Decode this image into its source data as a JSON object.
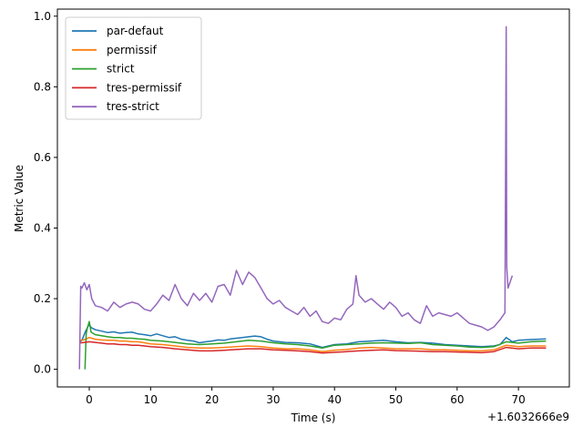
{
  "chart_data": {
    "type": "line",
    "title": "",
    "xlabel": "Time (s)",
    "ylabel": "Metric Value",
    "x_offset_label": "+1.6032666e9",
    "xlim": [
      -5.2,
      78.3
    ],
    "ylim": [
      -0.05,
      1.02
    ],
    "x_ticks": [
      0,
      10,
      20,
      30,
      40,
      50,
      60,
      70
    ],
    "y_ticks": [
      0.0,
      0.2,
      0.4,
      0.6,
      0.8,
      1.0
    ],
    "y_tick_labels": [
      "0.0",
      "0.2",
      "0.4",
      "0.6",
      "0.8",
      "1.0"
    ],
    "grid": false,
    "legend": "upper-left",
    "series": [
      {
        "name": "par-defaut",
        "color": "#1f77b4",
        "x": [
          -1.5,
          -1.2,
          -0.6,
          0.0,
          0.3,
          1,
          2,
          3,
          4,
          5,
          6,
          7,
          8,
          9,
          10,
          11,
          12,
          13,
          14,
          15,
          16,
          17,
          18,
          19,
          20,
          21,
          22,
          23,
          24,
          25,
          26,
          27,
          28,
          29,
          30,
          32,
          34,
          36,
          38,
          40,
          42,
          44,
          46,
          48,
          50,
          52,
          54,
          56,
          58,
          60,
          62,
          64,
          66,
          67,
          68,
          69,
          70,
          72,
          74.5
        ],
        "values": [
          0.078,
          0.082,
          0.108,
          0.128,
          0.118,
          0.112,
          0.108,
          0.104,
          0.106,
          0.102,
          0.104,
          0.105,
          0.1,
          0.098,
          0.095,
          0.1,
          0.095,
          0.09,
          0.092,
          0.085,
          0.082,
          0.08,
          0.075,
          0.078,
          0.08,
          0.083,
          0.082,
          0.086,
          0.088,
          0.09,
          0.092,
          0.094,
          0.092,
          0.085,
          0.08,
          0.076,
          0.075,
          0.072,
          0.062,
          0.07,
          0.072,
          0.078,
          0.08,
          0.082,
          0.078,
          0.075,
          0.076,
          0.074,
          0.07,
          0.068,
          0.066,
          0.064,
          0.066,
          0.07,
          0.09,
          0.078,
          0.082,
          0.084,
          0.086
        ]
      },
      {
        "name": "permissif",
        "color": "#ff7f0e",
        "x": [
          -1.5,
          -1.2,
          -0.6,
          0.0,
          1,
          2,
          3,
          4,
          5,
          6,
          7,
          8,
          9,
          10,
          12,
          14,
          16,
          18,
          20,
          22,
          24,
          26,
          28,
          30,
          32,
          34,
          36,
          38,
          40,
          42,
          44,
          46,
          48,
          50,
          52,
          54,
          56,
          58,
          60,
          62,
          64,
          66,
          68,
          70,
          72,
          74.5
        ],
        "values": [
          0.082,
          0.082,
          0.085,
          0.09,
          0.085,
          0.083,
          0.082,
          0.082,
          0.08,
          0.08,
          0.078,
          0.078,
          0.075,
          0.072,
          0.07,
          0.066,
          0.062,
          0.06,
          0.06,
          0.062,
          0.064,
          0.066,
          0.064,
          0.06,
          0.058,
          0.058,
          0.055,
          0.05,
          0.054,
          0.056,
          0.06,
          0.062,
          0.06,
          0.058,
          0.058,
          0.058,
          0.055,
          0.055,
          0.054,
          0.052,
          0.052,
          0.055,
          0.068,
          0.064,
          0.066,
          0.066
        ]
      },
      {
        "name": "strict",
        "color": "#2ca02c",
        "x": [
          -0.7,
          -0.5,
          -0.3,
          0.0,
          0.3,
          1,
          2,
          3,
          4,
          5,
          6,
          7,
          8,
          9,
          10,
          12,
          14,
          16,
          18,
          20,
          22,
          24,
          26,
          28,
          30,
          32,
          34,
          36,
          38,
          40,
          42,
          44,
          46,
          48,
          50,
          52,
          54,
          56,
          58,
          60,
          62,
          64,
          66,
          68,
          70,
          72,
          74.5
        ],
        "values": [
          0.0,
          0.1,
          0.118,
          0.135,
          0.105,
          0.098,
          0.095,
          0.092,
          0.09,
          0.09,
          0.088,
          0.088,
          0.086,
          0.085,
          0.082,
          0.08,
          0.076,
          0.072,
          0.07,
          0.072,
          0.074,
          0.078,
          0.082,
          0.08,
          0.075,
          0.072,
          0.07,
          0.066,
          0.06,
          0.068,
          0.07,
          0.072,
          0.074,
          0.075,
          0.074,
          0.073,
          0.075,
          0.07,
          0.068,
          0.066,
          0.063,
          0.062,
          0.064,
          0.078,
          0.074,
          0.078,
          0.08
        ]
      },
      {
        "name": "tres-permissif",
        "color": "#d62728",
        "x": [
          -1.5,
          -1.2,
          0,
          1,
          2,
          3,
          4,
          5,
          6,
          7,
          8,
          9,
          10,
          12,
          14,
          16,
          18,
          20,
          22,
          24,
          26,
          28,
          30,
          32,
          34,
          36,
          38,
          40,
          42,
          44,
          46,
          48,
          50,
          52,
          54,
          56,
          58,
          60,
          62,
          64,
          66,
          68,
          70,
          72,
          74.5
        ],
        "values": [
          0.075,
          0.075,
          0.078,
          0.076,
          0.074,
          0.072,
          0.072,
          0.07,
          0.07,
          0.068,
          0.068,
          0.066,
          0.064,
          0.062,
          0.058,
          0.055,
          0.052,
          0.052,
          0.054,
          0.056,
          0.058,
          0.058,
          0.055,
          0.054,
          0.052,
          0.05,
          0.046,
          0.048,
          0.05,
          0.052,
          0.054,
          0.055,
          0.053,
          0.052,
          0.051,
          0.05,
          0.05,
          0.049,
          0.048,
          0.047,
          0.05,
          0.062,
          0.058,
          0.06,
          0.06
        ]
      },
      {
        "name": "tres-strict",
        "color": "#9467bd",
        "x": [
          -1.6,
          -1.4,
          -1.2,
          -0.8,
          -0.4,
          0,
          0.4,
          1,
          2,
          3,
          4,
          5,
          6,
          7,
          8,
          9,
          10,
          11,
          12,
          13,
          14,
          15,
          16,
          17,
          18,
          19,
          20,
          21,
          22,
          23,
          24,
          25,
          26,
          27,
          28,
          29,
          30,
          31,
          32,
          33,
          34,
          35,
          36,
          37,
          38,
          39,
          40,
          41,
          42,
          43,
          43.5,
          44,
          45,
          46,
          47,
          48,
          49,
          50,
          51,
          52,
          53,
          54,
          55,
          56,
          57,
          58,
          59,
          60,
          61,
          62,
          63,
          64,
          65,
          66,
          67,
          67.8,
          68.0,
          68.1,
          68.3,
          69.0
        ],
        "values": [
          0.0,
          0.235,
          0.23,
          0.245,
          0.225,
          0.24,
          0.2,
          0.18,
          0.175,
          0.165,
          0.19,
          0.175,
          0.185,
          0.19,
          0.185,
          0.17,
          0.165,
          0.185,
          0.21,
          0.195,
          0.24,
          0.2,
          0.18,
          0.215,
          0.195,
          0.215,
          0.19,
          0.235,
          0.24,
          0.21,
          0.28,
          0.24,
          0.275,
          0.26,
          0.23,
          0.2,
          0.185,
          0.195,
          0.175,
          0.165,
          0.155,
          0.175,
          0.15,
          0.165,
          0.135,
          0.13,
          0.145,
          0.14,
          0.17,
          0.185,
          0.265,
          0.21,
          0.19,
          0.2,
          0.185,
          0.17,
          0.19,
          0.175,
          0.15,
          0.16,
          0.14,
          0.13,
          0.18,
          0.15,
          0.16,
          0.155,
          0.15,
          0.16,
          0.145,
          0.13,
          0.125,
          0.12,
          0.11,
          0.12,
          0.14,
          0.16,
          0.97,
          0.29,
          0.23,
          0.265
        ]
      }
    ]
  }
}
